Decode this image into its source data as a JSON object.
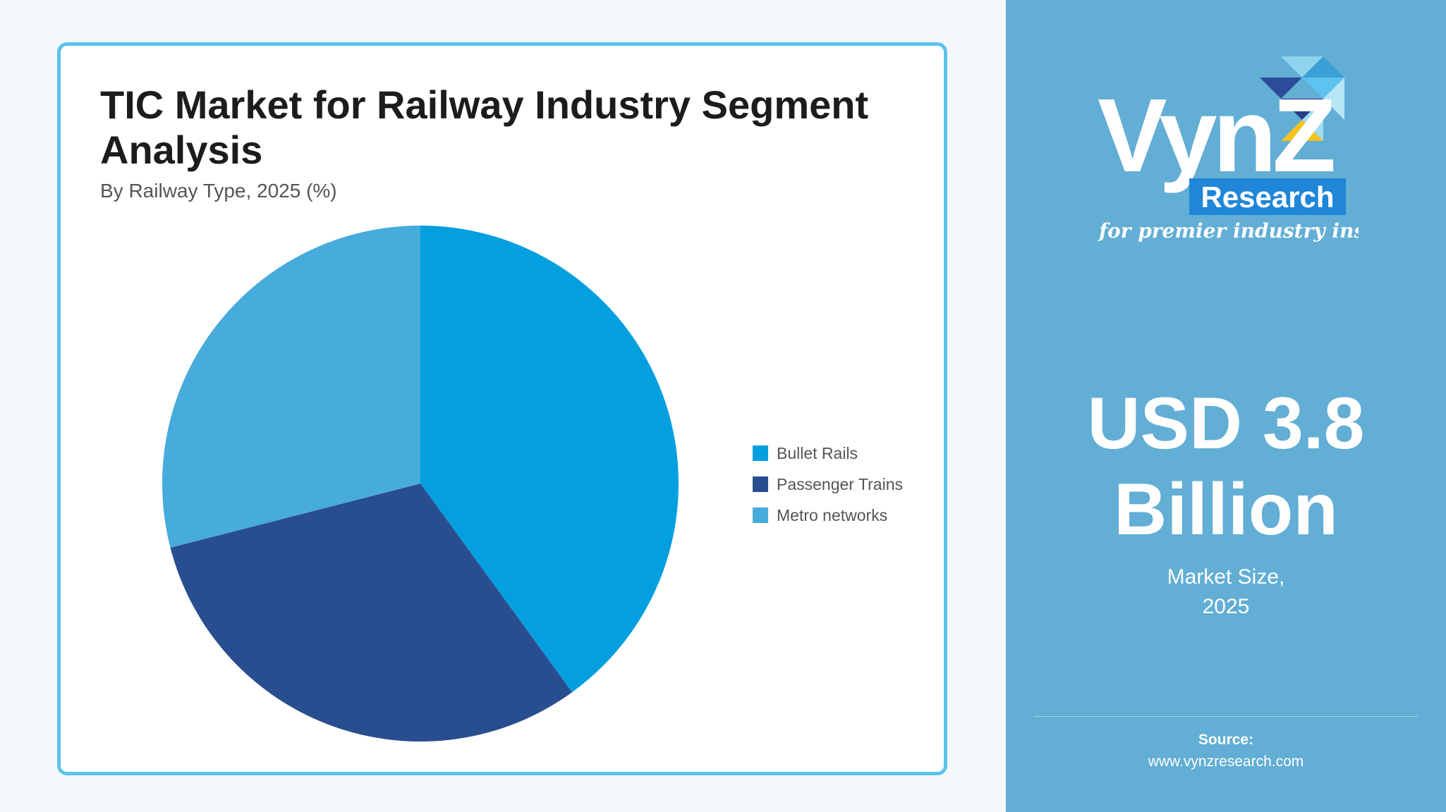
{
  "chart_data": {
    "type": "pie",
    "title_line1": "TIC Market for Railway Industry Segment",
    "title_line2": "Analysis",
    "subtitle": "By Railway Type, 2025 (%)",
    "series": [
      {
        "name": "Bullet Rails",
        "value": 40,
        "color": "#049fdf"
      },
      {
        "name": "Passenger Trains",
        "value": 31,
        "color": "#294e8f"
      },
      {
        "name": "Metro networks",
        "value": 29,
        "color": "#47abdb"
      }
    ],
    "legend_position": "right"
  },
  "brand": {
    "logo_word": "VynZ",
    "logo_box": "Research",
    "tagline": "for premier industry insights"
  },
  "metric": {
    "value_line1": "USD 3.8",
    "value_line2": "Billion",
    "caption_line1": "Market Size,",
    "caption_line2": "2025"
  },
  "source": {
    "label": "Source:",
    "url": "www.vynzresearch.com"
  },
  "colors": {
    "panel": "#62aed5",
    "card_border": "#5bc2ec"
  }
}
